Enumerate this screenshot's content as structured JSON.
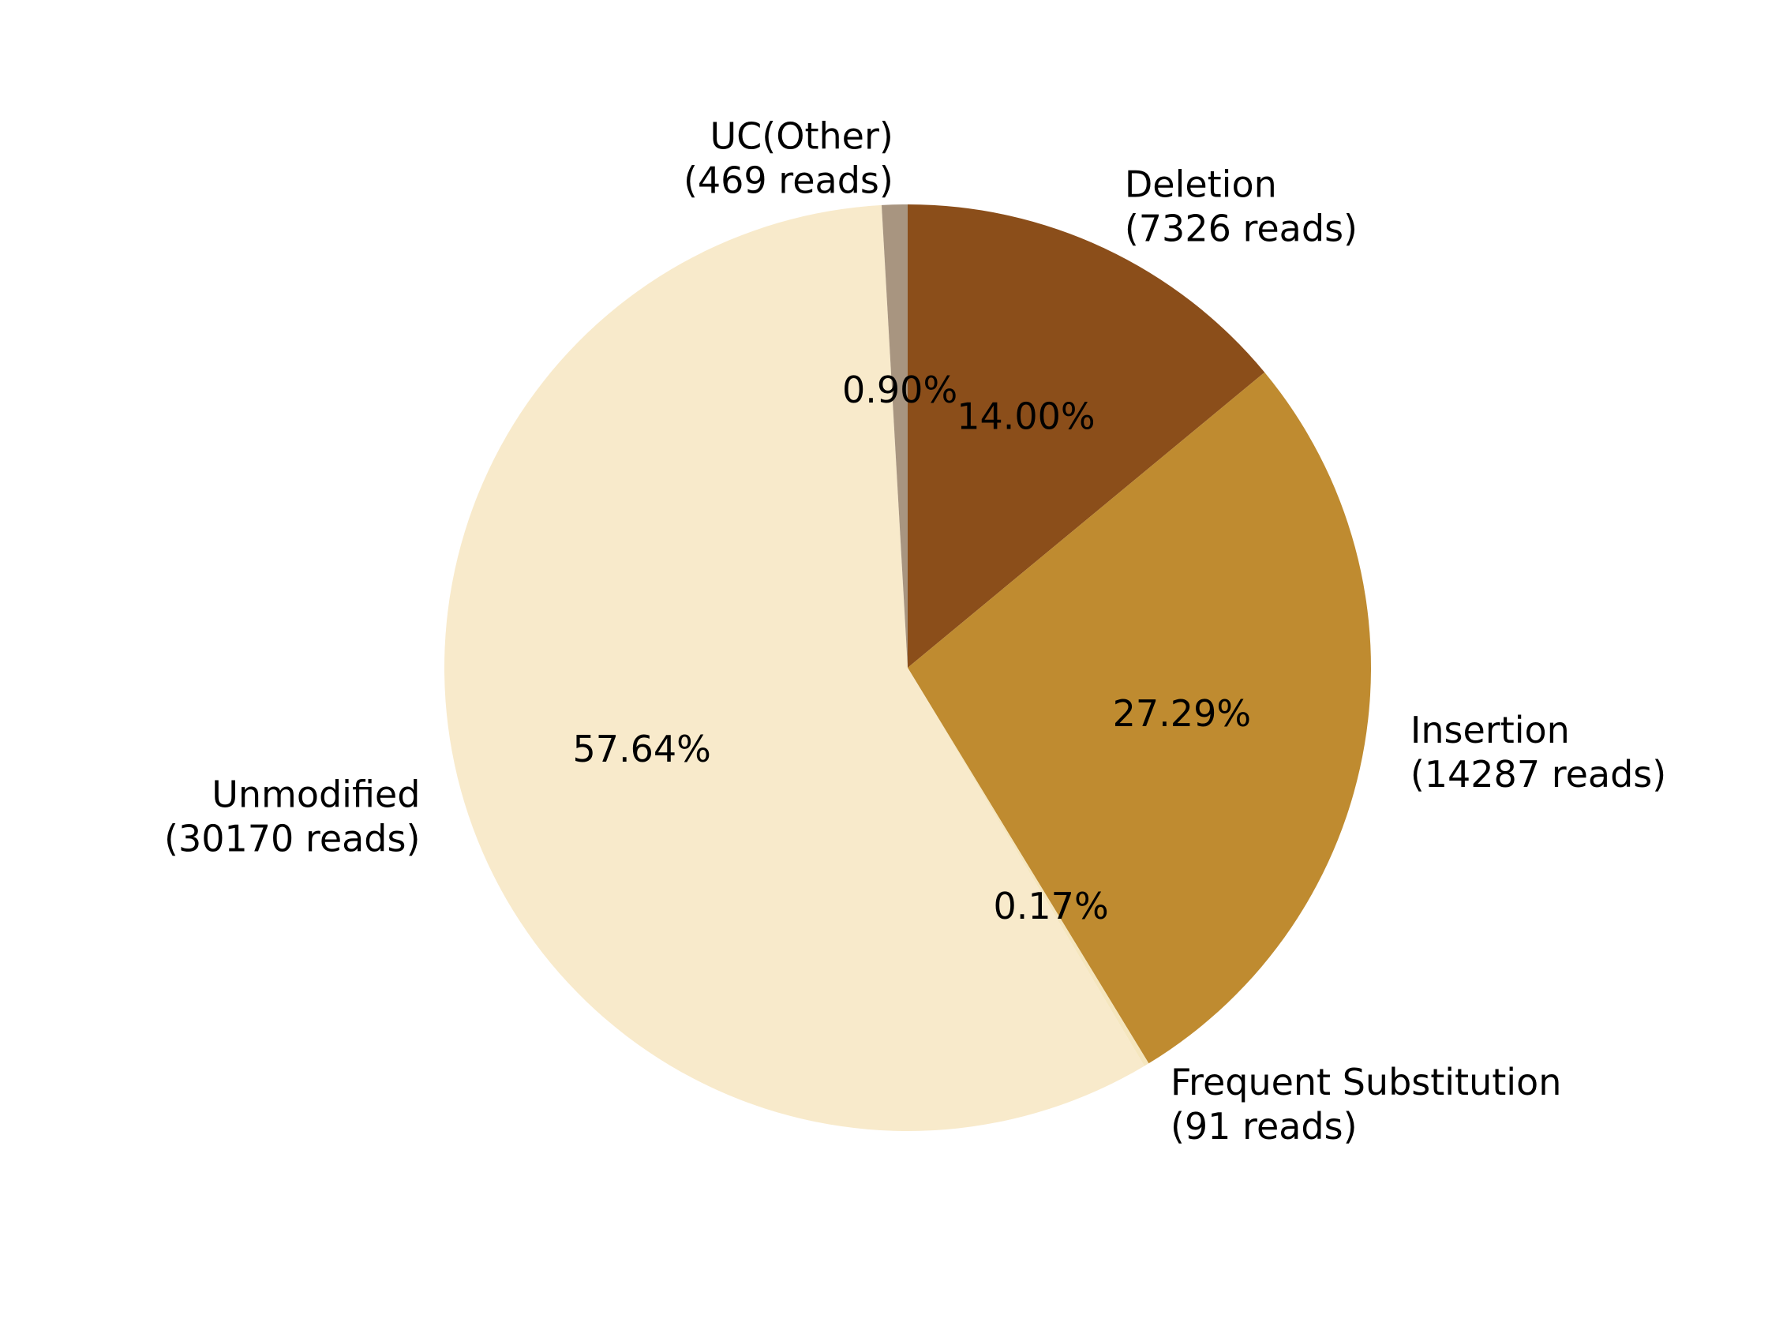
{
  "chart_data": {
    "type": "pie",
    "title": "",
    "slices": [
      {
        "label": "Deletion",
        "reads_text": "(7326 reads)",
        "value": 7326,
        "percent_text": "14.00%",
        "color": "#8B4E1A"
      },
      {
        "label": "Insertion",
        "reads_text": "(14287 reads)",
        "value": 14287,
        "percent_text": "27.29%",
        "color": "#BF8B30"
      },
      {
        "label": "Frequent Substitution",
        "reads_text": "(91 reads)",
        "value": 91,
        "percent_text": "0.17%",
        "color": "#F5E6BE"
      },
      {
        "label": "Unmodified",
        "reads_text": "(30170 reads)",
        "value": 30170,
        "percent_text": "57.64%",
        "color": "#F8EACB"
      },
      {
        "label": "UC(Other)",
        "reads_text": "(469 reads)",
        "value": 469,
        "percent_text": "0.90%",
        "color": "#A89580"
      }
    ],
    "start_angle": "12 o'clock",
    "direction": "clockwise",
    "legend": "none"
  }
}
